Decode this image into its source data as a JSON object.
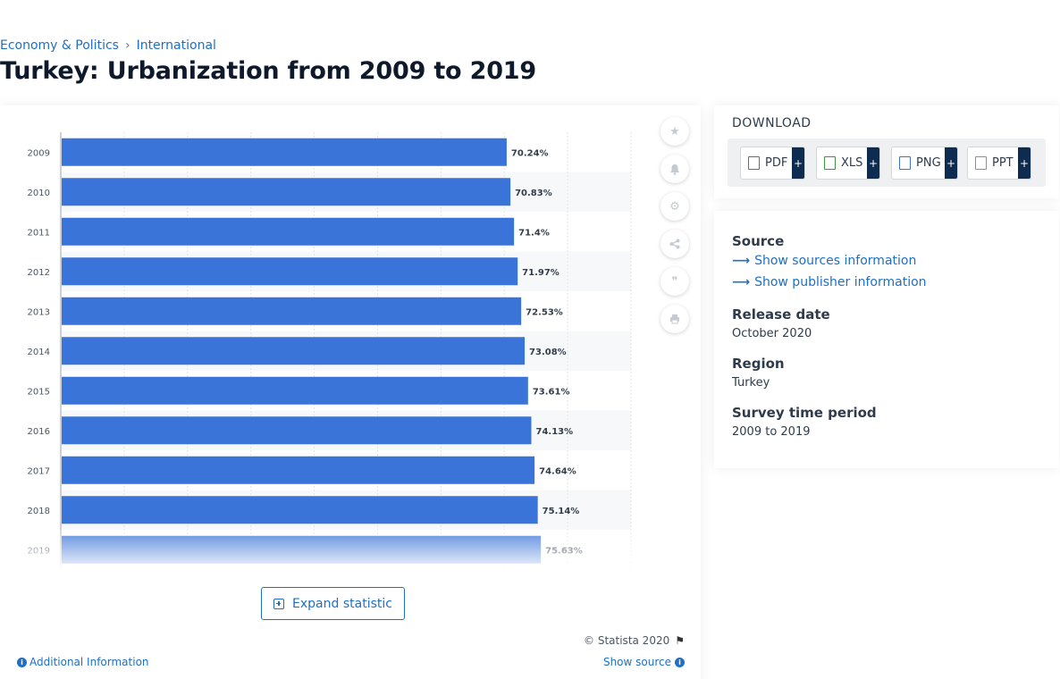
{
  "breadcrumb": {
    "item1": "Economy & Politics",
    "separator": "›",
    "item2": "International"
  },
  "page_title": "Turkey: Urbanization from 2009 to 2019",
  "chart_data": {
    "type": "bar",
    "orientation": "horizontal",
    "categories": [
      "2009",
      "2010",
      "2011",
      "2012",
      "2013",
      "2014",
      "2015",
      "2016",
      "2017",
      "2018",
      "2019"
    ],
    "values": [
      70.24,
      70.83,
      71.4,
      71.97,
      72.53,
      73.08,
      73.61,
      74.13,
      74.64,
      75.14,
      75.63
    ],
    "value_labels": [
      "70.24%",
      "70.83%",
      "71.4%",
      "71.97%",
      "72.53%",
      "73.08%",
      "73.61%",
      "74.13%",
      "74.64%",
      "75.14%",
      "75.63%"
    ],
    "xlim": [
      0,
      90
    ],
    "grid": true,
    "bar_color": "#3b74d8"
  },
  "tools": {
    "star_icon": "star-icon",
    "bell_icon": "bell-icon",
    "gear_icon": "gear-icon",
    "share_icon": "share-icon",
    "quote_icon": "quote-icon",
    "print_icon": "print-icon"
  },
  "expand_label": "Expand statistic",
  "copyright": "© Statista 2020",
  "additional_info": "Additional Information",
  "show_source": "Show source",
  "download": {
    "title": "DOWNLOAD",
    "buttons": [
      {
        "label": "PDF",
        "plus": "+"
      },
      {
        "label": "XLS",
        "plus": "+"
      },
      {
        "label": "PNG",
        "plus": "+"
      },
      {
        "label": "PPT",
        "plus": "+"
      }
    ]
  },
  "info": {
    "source_label": "Source",
    "show_sources": "Show sources information",
    "show_publisher": "Show publisher information",
    "release_label": "Release date",
    "release_value": "October 2020",
    "region_label": "Region",
    "region_value": "Turkey",
    "period_label": "Survey time period",
    "period_value": "2009 to 2019"
  },
  "colors": {
    "accent": "#1f6fc5",
    "bar": "#3b74d8",
    "dark": "#0e2c4f"
  }
}
